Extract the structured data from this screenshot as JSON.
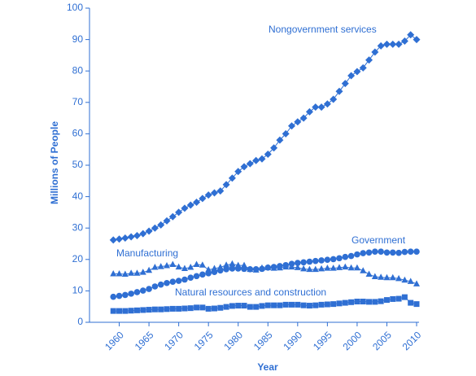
{
  "chart_data": {
    "type": "line",
    "xlabel": "Year",
    "ylabel": "Millions of People",
    "x": [
      1959,
      1960,
      1961,
      1962,
      1963,
      1964,
      1965,
      1966,
      1967,
      1968,
      1969,
      1970,
      1971,
      1972,
      1973,
      1974,
      1975,
      1976,
      1977,
      1978,
      1979,
      1980,
      1981,
      1982,
      1983,
      1984,
      1985,
      1986,
      1987,
      1988,
      1989,
      1990,
      1991,
      1992,
      1993,
      1994,
      1995,
      1996,
      1997,
      1998,
      1999,
      2000,
      2001,
      2002,
      2003,
      2004,
      2005,
      2006,
      2007,
      2008,
      2009,
      2010
    ],
    "series": [
      {
        "name": "Nongovernment services",
        "color": "#2f6fd3",
        "marker": "diamond",
        "values": [
          26.2,
          26.5,
          26.8,
          27.2,
          27.6,
          28.2,
          29,
          30,
          31,
          32.3,
          33.6,
          35,
          36.3,
          37.3,
          38.2,
          39.4,
          40.5,
          41.2,
          41.8,
          43.8,
          45.9,
          48,
          49.5,
          50.5,
          51.5,
          52,
          53.5,
          55.5,
          58,
          60,
          62.5,
          63.8,
          65,
          67,
          68.5,
          68.5,
          69.5,
          71,
          73.5,
          76,
          78.5,
          79.8,
          81,
          83.5,
          86,
          88,
          88.5,
          88.5,
          88.5,
          89.5,
          91.5,
          90
        ]
      },
      {
        "name": "Manufacturing",
        "color": "#2f6fd3",
        "marker": "triangle",
        "values": [
          15.4,
          15.4,
          15.3,
          15.6,
          15.6,
          15.9,
          16.5,
          17.5,
          17.7,
          18,
          18.4,
          17.6,
          17.1,
          17.5,
          18.4,
          18.2,
          16.7,
          17.1,
          17.5,
          18.2,
          18.6,
          18.1,
          18.1,
          16.8,
          16.6,
          17.3,
          17.4,
          17.2,
          17.3,
          17.6,
          17.6,
          17.4,
          17,
          16.8,
          16.8,
          17,
          17.2,
          17.2,
          17.4,
          17.6,
          17.3,
          17.3,
          16.4,
          15.3,
          14.5,
          14.3,
          14.2,
          14.2,
          13.9,
          13.4,
          13,
          12.2
        ]
      },
      {
        "name": "Government",
        "color": "#2f6fd3",
        "marker": "circle",
        "values": [
          8.1,
          8.4,
          8.7,
          9.1,
          9.6,
          10.1,
          10.6,
          11.4,
          12,
          12.5,
          12.9,
          13.2,
          13.6,
          14.2,
          14.7,
          15.2,
          15.6,
          16,
          16.5,
          16.9,
          17.1,
          17.1,
          17,
          16.9,
          16.9,
          17,
          17.4,
          17.6,
          17.9,
          18.2,
          18.6,
          18.9,
          19.1,
          19.3,
          19.5,
          19.7,
          19.9,
          20.1,
          20.4,
          20.8,
          21.1,
          21.6,
          22,
          22.2,
          22.5,
          22.5,
          22.2,
          22.2,
          22.1,
          22.4,
          22.5,
          22.5
        ]
      },
      {
        "name": "Natural resources and construction",
        "color": "#2f6fd3",
        "marker": "square",
        "values": [
          3.6,
          3.6,
          3.6,
          3.7,
          3.8,
          3.9,
          4,
          4.1,
          4.1,
          4.2,
          4.3,
          4.3,
          4.4,
          4.5,
          4.7,
          4.7,
          4.3,
          4.4,
          4.6,
          4.9,
          5.2,
          5.3,
          5.3,
          4.9,
          4.9,
          5.2,
          5.4,
          5.4,
          5.4,
          5.6,
          5.6,
          5.6,
          5.4,
          5.3,
          5.4,
          5.6,
          5.7,
          5.8,
          6,
          6.2,
          6.4,
          6.6,
          6.6,
          6.5,
          6.5,
          6.7,
          7.1,
          7.4,
          7.5,
          8,
          6.2,
          5.8
        ]
      }
    ],
    "xlim": [
      1955,
      2010
    ],
    "xticks": [
      1960,
      1965,
      1970,
      1975,
      1980,
      1985,
      1990,
      1995,
      2000,
      2005,
      2010
    ],
    "ylim": [
      0,
      100
    ],
    "yticks": [
      0,
      10,
      20,
      30,
      40,
      50,
      60,
      70,
      80,
      90,
      100
    ]
  }
}
